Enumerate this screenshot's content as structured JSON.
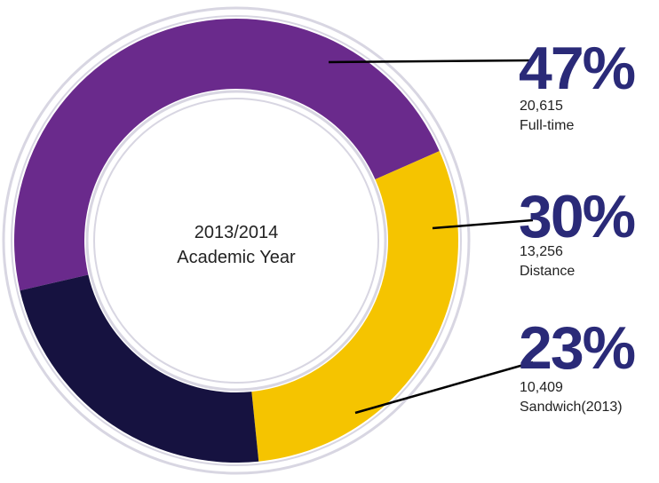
{
  "chart_data": {
    "type": "pie",
    "title": "",
    "center_label": {
      "line1": "2013/2014",
      "line2": "Academic Year"
    },
    "slices": [
      {
        "label": "Full-time",
        "percent": 47,
        "percent_text": "47%",
        "count": 20615,
        "count_text": "20,615",
        "color": "#6a2a8c"
      },
      {
        "label": "Distance",
        "percent": 30,
        "percent_text": "30%",
        "count": 13256,
        "count_text": "13,256",
        "color": "#f5c400"
      },
      {
        "label": "Sandwich(2013)",
        "percent": 23,
        "percent_text": "23%",
        "count": 10409,
        "count_text": "10,409",
        "color": "#161240"
      }
    ]
  }
}
